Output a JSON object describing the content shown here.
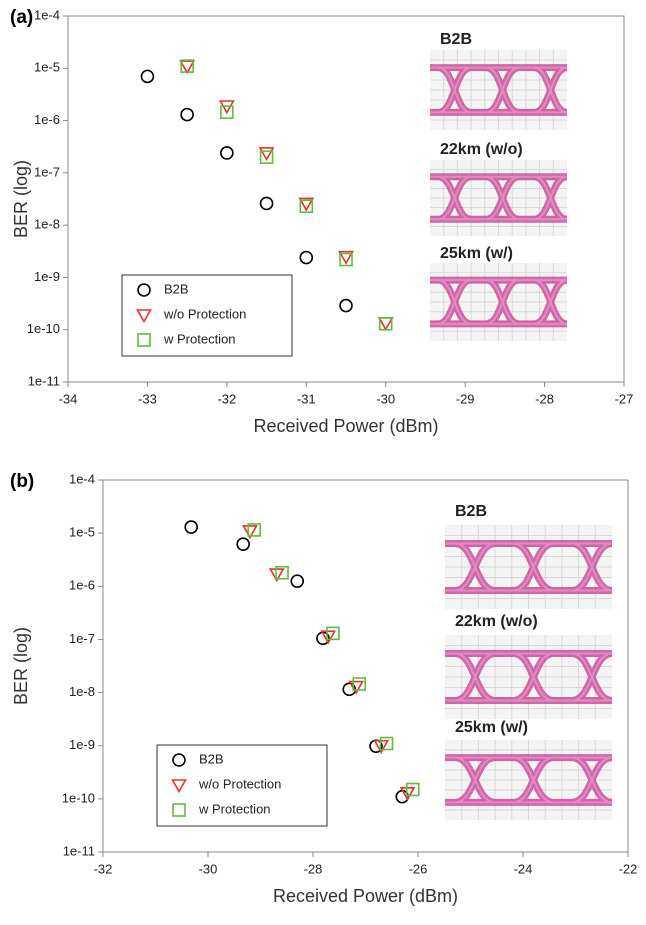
{
  "chart_data": [
    {
      "type": "scatter",
      "panel_label": "(a)",
      "x_label": "Received Power (dBm)",
      "y_label": "BER (log)",
      "xlim": [
        -34,
        -27
      ],
      "xticks": [
        -34,
        -33,
        -32,
        -31,
        -30,
        -29,
        -28,
        -27
      ],
      "ylim": [
        1e-11,
        0.0001
      ],
      "yscale": "log",
      "yticks": [
        {
          "value": 1e-11,
          "label": "1e-11"
        },
        {
          "value": 1e-10,
          "label": "1e-10"
        },
        {
          "value": 1e-09,
          "label": "1e-9"
        },
        {
          "value": 1e-08,
          "label": "1e-8"
        },
        {
          "value": 1e-07,
          "label": "1e-7"
        },
        {
          "value": 1e-06,
          "label": "1e-6"
        },
        {
          "value": 1e-05,
          "label": "1e-5"
        },
        {
          "value": 0.0001,
          "label": "1e-4"
        }
      ],
      "grid": false,
      "legend": "lower left",
      "annotations": [
        "B2B",
        "22km (w/o)",
        "25km (w/)"
      ],
      "series": [
        {
          "name": "B2B",
          "color": "#000000",
          "marker": "circle",
          "x": [
            -33,
            -32.5,
            -32,
            -31.5,
            -31,
            -30.5
          ],
          "values": [
            7e-06,
            1.3e-06,
            2.4e-07,
            2.6e-08,
            2.4e-09,
            2.9e-10
          ]
        },
        {
          "name": "w/o Protection",
          "color": "#e8312a",
          "marker": "triangle",
          "x": [
            -32.5,
            -32,
            -31.5,
            -31,
            -30.5,
            -30
          ],
          "values": [
            1.1e-05,
            1.9e-06,
            2.4e-07,
            2.6e-08,
            2.5e-09,
            1.35e-10
          ]
        },
        {
          "name": "w Protection",
          "color": "#5cbf3c",
          "marker": "square",
          "x": [
            -32.5,
            -32,
            -31.5,
            -31,
            -30.5,
            -30
          ],
          "values": [
            1.1e-05,
            1.45e-06,
            2e-07,
            2.3e-08,
            2.2e-09,
            1.3e-10
          ]
        }
      ]
    },
    {
      "type": "scatter",
      "panel_label": "(b)",
      "x_label": "Received Power (dBm)",
      "y_label": "BER (log)",
      "xlim": [
        -32,
        -22
      ],
      "xticks": [
        -32,
        -30,
        -28,
        -26,
        -24,
        -22
      ],
      "ylim": [
        1e-11,
        0.0001
      ],
      "yscale": "log",
      "yticks": [
        {
          "value": 1e-11,
          "label": "1e-11"
        },
        {
          "value": 1e-10,
          "label": "1e-10"
        },
        {
          "value": 1e-09,
          "label": "1e-9"
        },
        {
          "value": 1e-08,
          "label": "1e-8"
        },
        {
          "value": 1e-07,
          "label": "1e-7"
        },
        {
          "value": 1e-06,
          "label": "1e-6"
        },
        {
          "value": 1e-05,
          "label": "1e-5"
        },
        {
          "value": 0.0001,
          "label": "1e-4"
        }
      ],
      "grid": false,
      "legend": "lower left",
      "annotations": [
        "B2B",
        "22km (w/o)",
        "25km (w/)"
      ],
      "series": [
        {
          "name": "B2B",
          "color": "#000000",
          "marker": "circle",
          "x": [
            -30.32,
            -29.33,
            -28.3,
            -27.81,
            -27.31,
            -26.8,
            -26.3
          ],
          "values": [
            1.3e-05,
            6.2e-06,
            1.25e-06,
            1.05e-07,
            1.15e-08,
            9.8e-10,
            1.1e-10
          ]
        },
        {
          "name": "w/o Protection",
          "color": "#e8312a",
          "marker": "triangle",
          "x": [
            -29.2,
            -28.69,
            -27.71,
            -27.18,
            -26.7,
            -26.2
          ],
          "values": [
            1.1e-05,
            1.7e-06,
            1.15e-07,
            1.3e-08,
            1e-09,
            1.3e-10
          ]
        },
        {
          "name": "w Protection",
          "color": "#5cbf3c",
          "marker": "square",
          "x": [
            -29.12,
            -28.59,
            -27.62,
            -27.12,
            -26.6,
            -26.1
          ],
          "values": [
            1.15e-05,
            1.8e-06,
            1.3e-07,
            1.45e-08,
            1.1e-09,
            1.5e-10
          ]
        }
      ]
    }
  ]
}
